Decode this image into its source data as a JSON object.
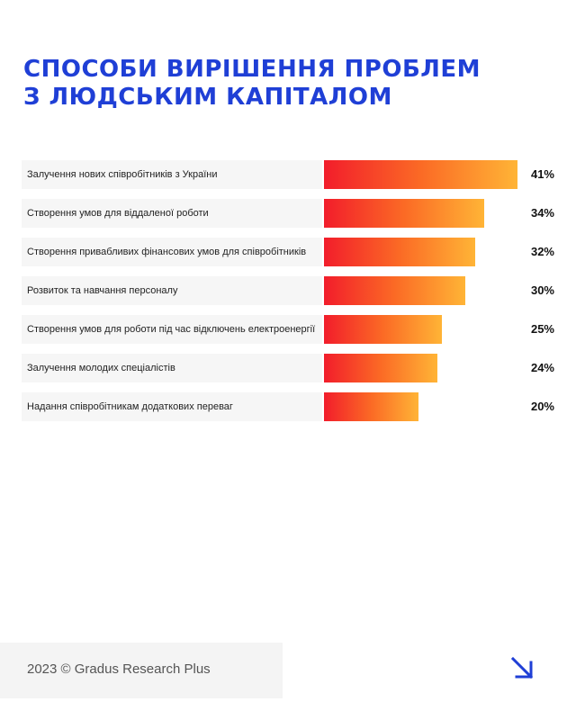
{
  "title": {
    "line1": "СПОСОБИ ВИРІШЕННЯ ПРОБЛЕМ",
    "line2": "З ЛЮДСЬКИМ КАПІТАЛОМ"
  },
  "colors": {
    "title": "#1f3fd6",
    "bar_start": "#f21d2b",
    "bar_end": "#ffb436",
    "arrow": "#1f3fd6"
  },
  "chart_data": {
    "type": "bar",
    "orientation": "horizontal",
    "categories": [
      "Залучення нових співробітників з України",
      "Створення умов для віддаленої роботи",
      "Створення привабливих фінансових умов для співробітників",
      "Розвиток та навчання персоналу",
      "Створення умов для роботи під час відключень електроенергії",
      "Залучення молодих спеціалістів",
      "Надання співробітникам додаткових переваг"
    ],
    "values": [
      41,
      34,
      32,
      30,
      25,
      24,
      20
    ],
    "value_labels": [
      "41%",
      "34%",
      "32%",
      "30%",
      "25%",
      "24%",
      "20%"
    ],
    "unit": "%"
  },
  "footer": {
    "text": "2023 © Gradus Research Plus",
    "arrow_icon": "arrow-down-right-icon"
  }
}
